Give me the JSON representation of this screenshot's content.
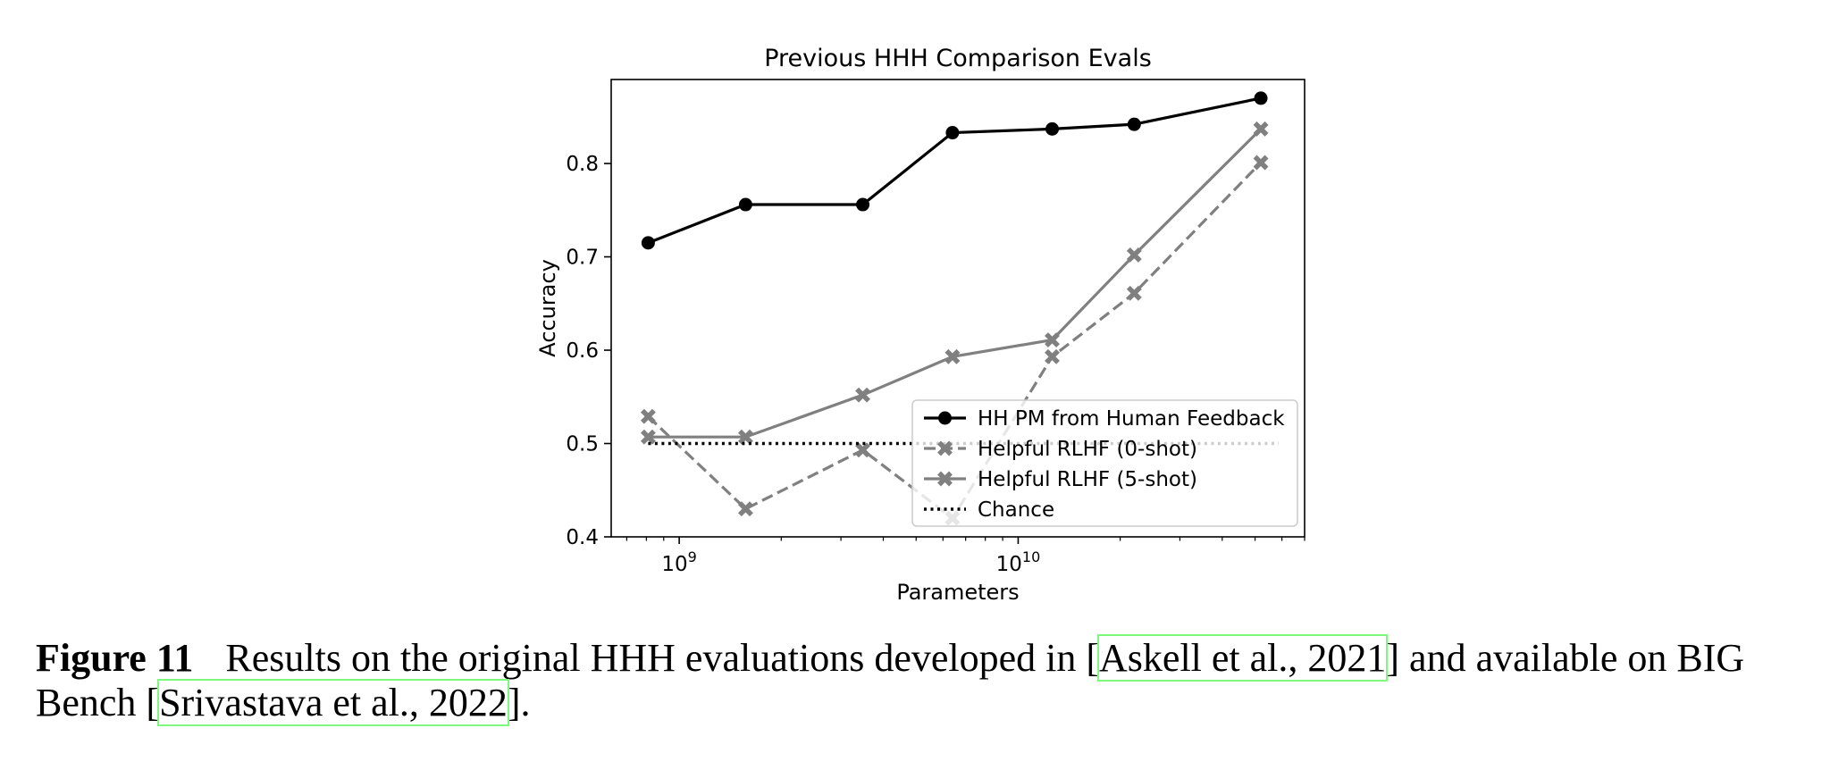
{
  "chart_data": {
    "type": "line",
    "title": "Previous HHH Comparison Evals",
    "xlabel": "Parameters",
    "ylabel": "Accuracy",
    "xscale": "log",
    "xlim": [
      630000000,
      70000000000
    ],
    "ylim": [
      0.4,
      0.89
    ],
    "yticks": [
      0.4,
      0.5,
      0.6,
      0.7,
      0.8
    ],
    "ytick_labels": [
      "0.4",
      "0.5",
      "0.6",
      "0.7",
      "0.8"
    ],
    "xticks": [
      1000000000,
      10000000000
    ],
    "xtick_labels": [
      {
        "base": "10",
        "exp": "9"
      },
      {
        "base": "10",
        "exp": "10"
      }
    ],
    "legend_position": "lower-right",
    "x": [
      810000000,
      1570000000,
      3480000000,
      6400000000,
      12600000000,
      22000000000,
      52000000000
    ],
    "series": [
      {
        "name": "HH PM from Human Feedback",
        "values": [
          0.715,
          0.756,
          0.756,
          0.833,
          0.837,
          0.842,
          0.87
        ],
        "color": "#000000",
        "style": "solid",
        "marker": "circle"
      },
      {
        "name": "Helpful RLHF (0-shot)",
        "values": [
          0.529,
          0.43,
          0.493,
          0.42,
          0.593,
          0.661,
          0.801
        ],
        "color": "#808080",
        "style": "dashed",
        "marker": "x"
      },
      {
        "name": "Helpful RLHF (5-shot)",
        "values": [
          0.507,
          0.507,
          0.552,
          0.593,
          0.611,
          0.702,
          0.837
        ],
        "color": "#808080",
        "style": "solid",
        "marker": "x"
      },
      {
        "name": "Chance",
        "values": [
          0.5,
          0.5,
          0.5,
          0.5,
          0.5,
          0.5,
          0.5
        ],
        "color": "#000000",
        "style": "dotted",
        "marker": "none"
      }
    ]
  },
  "caption": {
    "label": "Figure 11",
    "text_before": "Results on the original HHH evaluations developed in [",
    "cite1": "Askell et al., 2021",
    "text_middle": "] and available on BIG",
    "text_line2_start": "Bench [",
    "cite2": "Srivastava et al., 2022",
    "text_end": "]."
  }
}
